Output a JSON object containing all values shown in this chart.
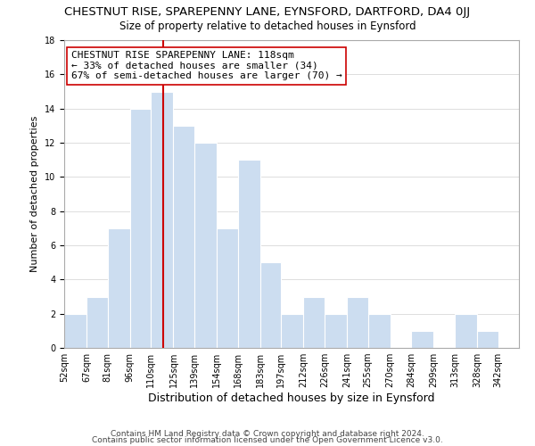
{
  "title": "CHESTNUT RISE, SPAREPENNY LANE, EYNSFORD, DARTFORD, DA4 0JJ",
  "subtitle": "Size of property relative to detached houses in Eynsford",
  "xlabel": "Distribution of detached houses by size in Eynsford",
  "ylabel": "Number of detached properties",
  "bar_color": "#ccddf0",
  "bin_labels": [
    "52sqm",
    "67sqm",
    "81sqm",
    "96sqm",
    "110sqm",
    "125sqm",
    "139sqm",
    "154sqm",
    "168sqm",
    "183sqm",
    "197sqm",
    "212sqm",
    "226sqm",
    "241sqm",
    "255sqm",
    "270sqm",
    "284sqm",
    "299sqm",
    "313sqm",
    "328sqm",
    "342sqm"
  ],
  "bin_edges": [
    52,
    67,
    81,
    96,
    110,
    125,
    139,
    154,
    168,
    183,
    197,
    212,
    226,
    241,
    255,
    270,
    284,
    299,
    313,
    328,
    342
  ],
  "counts": [
    2,
    3,
    7,
    14,
    15,
    13,
    12,
    7,
    11,
    5,
    2,
    3,
    2,
    3,
    2,
    0,
    1,
    0,
    2,
    1,
    0
  ],
  "vline_x": 118,
  "vline_color": "#cc0000",
  "annotation_title": "CHESTNUT RISE SPAREPENNY LANE: 118sqm",
  "annotation_line1": "← 33% of detached houses are smaller (34)",
  "annotation_line2": "67% of semi-detached houses are larger (70) →",
  "annotation_box_color": "#ffffff",
  "annotation_box_edge": "#cc0000",
  "ylim": [
    0,
    18
  ],
  "yticks": [
    0,
    2,
    4,
    6,
    8,
    10,
    12,
    14,
    16,
    18
  ],
  "grid_color": "#dddddd",
  "footer1": "Contains HM Land Registry data © Crown copyright and database right 2024.",
  "footer2": "Contains public sector information licensed under the Open Government Licence v3.0.",
  "title_fontsize": 9.5,
  "subtitle_fontsize": 8.5,
  "xlabel_fontsize": 9,
  "ylabel_fontsize": 8,
  "tick_fontsize": 7,
  "footer_fontsize": 6.5,
  "annotation_fontsize": 8
}
